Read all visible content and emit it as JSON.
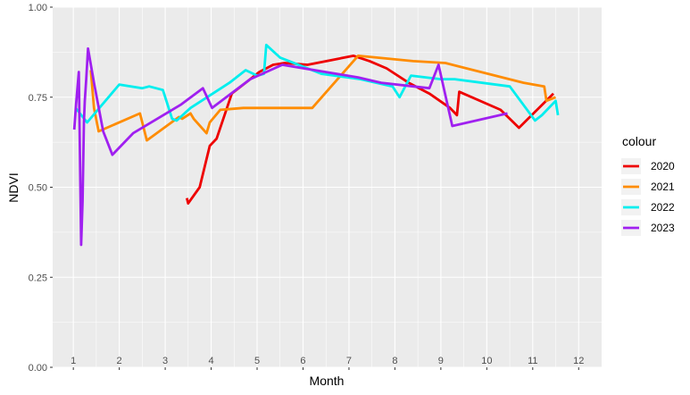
{
  "chart_data": {
    "type": "line",
    "xlabel": "Month",
    "ylabel": "NDVI",
    "xlim": [
      0.55,
      12.5
    ],
    "ylim": [
      0,
      1
    ],
    "y_ticks": [
      "0.00",
      "0.25",
      "0.50",
      "0.75",
      "1.00"
    ],
    "y_tick_values": [
      0,
      0.25,
      0.5,
      0.75,
      1
    ],
    "x_ticks": [
      "1",
      "2",
      "3",
      "4",
      "5",
      "6",
      "7",
      "8",
      "9",
      "10",
      "11",
      "12"
    ],
    "x_tick_values": [
      1,
      2,
      3,
      4,
      5,
      6,
      7,
      8,
      9,
      10,
      11,
      12
    ],
    "grid": true,
    "legend_title": "colour",
    "legend_position": "right",
    "series": [
      {
        "name": "2020",
        "color": "#ee0000",
        "points": [
          [
            3.47,
            0.47
          ],
          [
            3.5,
            0.455
          ],
          [
            3.75,
            0.5
          ],
          [
            3.97,
            0.615
          ],
          [
            4.12,
            0.635
          ],
          [
            4.45,
            0.76
          ],
          [
            4.85,
            0.8
          ],
          [
            5.05,
            0.82
          ],
          [
            5.35,
            0.84
          ],
          [
            5.6,
            0.845
          ],
          [
            6.1,
            0.84
          ],
          [
            7.1,
            0.865
          ],
          [
            7.45,
            0.85
          ],
          [
            7.82,
            0.83
          ],
          [
            8.3,
            0.79
          ],
          [
            8.75,
            0.76
          ],
          [
            9.2,
            0.72
          ],
          [
            9.35,
            0.7
          ],
          [
            9.4,
            0.765
          ],
          [
            10.3,
            0.715
          ],
          [
            10.7,
            0.665
          ],
          [
            11.45,
            0.76
          ]
        ]
      },
      {
        "name": "2021",
        "color": "#ff8c00",
        "points": [
          [
            1.38,
            0.825
          ],
          [
            1.45,
            0.72
          ],
          [
            1.55,
            0.655
          ],
          [
            2.45,
            0.705
          ],
          [
            2.6,
            0.63
          ],
          [
            3.3,
            0.695
          ],
          [
            3.37,
            0.69
          ],
          [
            3.55,
            0.705
          ],
          [
            3.62,
            0.69
          ],
          [
            3.9,
            0.65
          ],
          [
            3.97,
            0.68
          ],
          [
            4.2,
            0.715
          ],
          [
            4.7,
            0.72
          ],
          [
            5.6,
            0.72
          ],
          [
            6.2,
            0.72
          ],
          [
            7.2,
            0.865
          ],
          [
            8.4,
            0.85
          ],
          [
            9.1,
            0.845
          ],
          [
            10.8,
            0.79
          ],
          [
            11.25,
            0.78
          ],
          [
            11.3,
            0.74
          ],
          [
            11.5,
            0.75
          ]
        ]
      },
      {
        "name": "2022",
        "color": "#00eeee",
        "points": [
          [
            1.05,
            0.72
          ],
          [
            1.3,
            0.68
          ],
          [
            2.0,
            0.785
          ],
          [
            2.5,
            0.775
          ],
          [
            2.65,
            0.78
          ],
          [
            2.95,
            0.77
          ],
          [
            3.15,
            0.69
          ],
          [
            3.25,
            0.685
          ],
          [
            3.55,
            0.72
          ],
          [
            4.4,
            0.79
          ],
          [
            4.75,
            0.825
          ],
          [
            5.0,
            0.81
          ],
          [
            5.15,
            0.815
          ],
          [
            5.2,
            0.895
          ],
          [
            5.5,
            0.86
          ],
          [
            6.4,
            0.815
          ],
          [
            7.25,
            0.8
          ],
          [
            7.95,
            0.78
          ],
          [
            8.1,
            0.75
          ],
          [
            8.35,
            0.81
          ],
          [
            9.0,
            0.8
          ],
          [
            9.3,
            0.8
          ],
          [
            10.5,
            0.78
          ],
          [
            11.05,
            0.685
          ],
          [
            11.2,
            0.7
          ],
          [
            11.5,
            0.74
          ],
          [
            11.55,
            0.7
          ]
        ]
      },
      {
        "name": "2023",
        "color": "#a020f0",
        "points": [
          [
            1.02,
            0.66
          ],
          [
            1.06,
            0.73
          ],
          [
            1.12,
            0.82
          ],
          [
            1.17,
            0.34
          ],
          [
            1.2,
            0.46
          ],
          [
            1.23,
            0.68
          ],
          [
            1.25,
            0.74
          ],
          [
            1.28,
            0.8
          ],
          [
            1.32,
            0.885
          ],
          [
            1.45,
            0.79
          ],
          [
            1.65,
            0.655
          ],
          [
            1.85,
            0.59
          ],
          [
            2.3,
            0.65
          ],
          [
            3.35,
            0.73
          ],
          [
            3.82,
            0.775
          ],
          [
            4.02,
            0.72
          ],
          [
            4.85,
            0.8
          ],
          [
            5.55,
            0.84
          ],
          [
            7.2,
            0.805
          ],
          [
            7.7,
            0.79
          ],
          [
            8.4,
            0.78
          ],
          [
            8.75,
            0.775
          ],
          [
            8.95,
            0.84
          ],
          [
            9.25,
            0.67
          ],
          [
            10.45,
            0.705
          ]
        ]
      }
    ]
  }
}
